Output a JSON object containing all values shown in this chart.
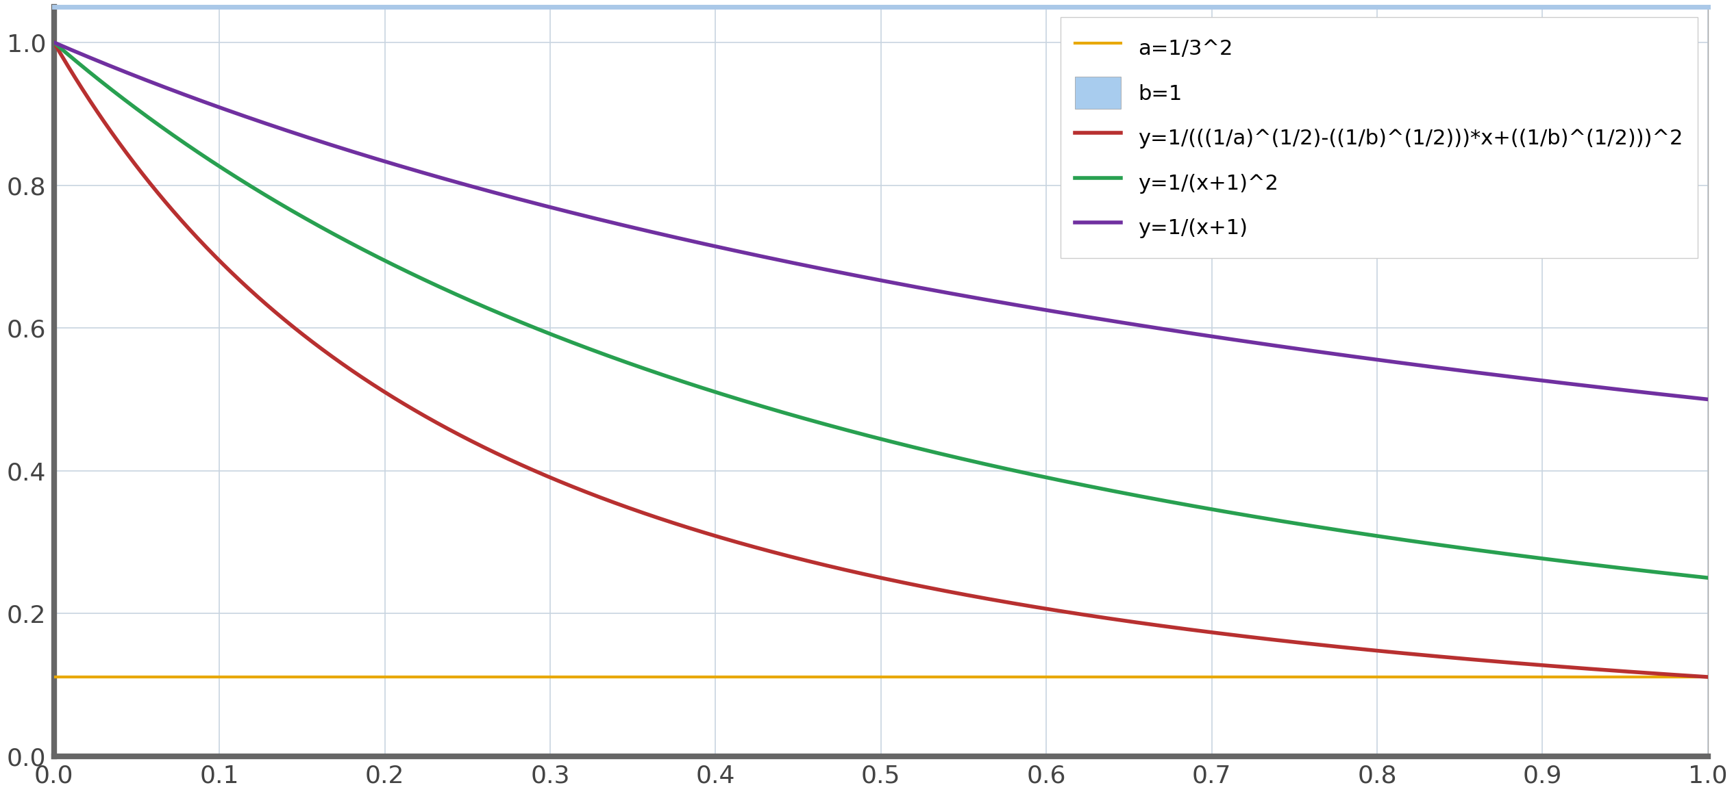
{
  "title": "",
  "xlim": [
    0.0,
    1.0
  ],
  "ylim": [
    0.0,
    1.05
  ],
  "xticks": [
    0.0,
    0.1,
    0.2,
    0.3,
    0.4,
    0.5,
    0.6,
    0.7,
    0.8,
    0.9,
    1.0
  ],
  "yticks": [
    0.0,
    0.2,
    0.4,
    0.6,
    0.8,
    1.0
  ],
  "a": 0.1111111111,
  "b": 1.0,
  "background_color": "#ffffff",
  "plot_bg_color": "#f0f4f8",
  "top_border_color": "#aac8e8",
  "grid_color": "#c8d4e0",
  "axis_color": "#444444",
  "spine_color": "#888888",
  "line_colors": {
    "a_line": "#e8a800",
    "b_line": "#a8ccee",
    "red_curve": "#b83030",
    "green_curve": "#28a050",
    "purple_curve": "#7030a0"
  },
  "legend_labels": {
    "a_line": "a=1/3^2",
    "b_line": "b=1",
    "red_curve": "y=1/(((1/a)^(1/2)-((1/b)^(1/2)))*x+((1/b)^(1/2)))^2",
    "green_curve": "y=1/(x+1)^2",
    "purple_curve": "y=1/(x+1)"
  },
  "legend_fontsize": 22,
  "tick_fontsize": 26,
  "linewidth_main": 4.0,
  "linewidth_hline": 3.0
}
